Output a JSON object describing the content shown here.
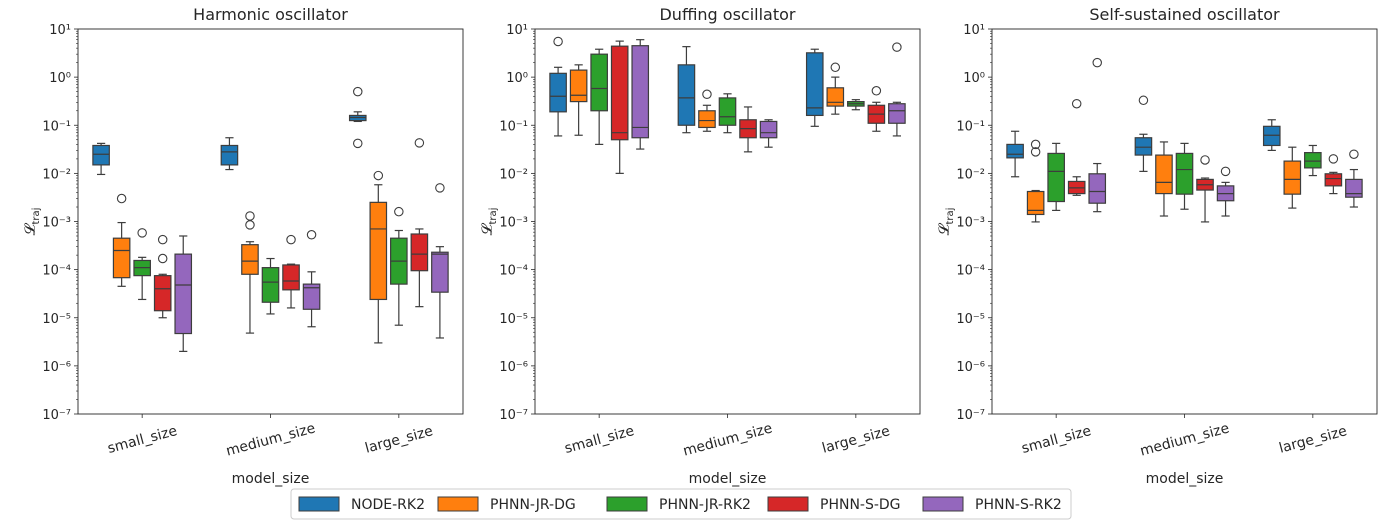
{
  "legend": {
    "placement": "bottom-center",
    "entries": [
      {
        "label": "NODE-RK2",
        "color": "#1f77b4"
      },
      {
        "label": "PHNN-JR-DG",
        "color": "#ff7f0e"
      },
      {
        "label": "PHNN-JR-RK2",
        "color": "#2ca02c"
      },
      {
        "label": "PHNN-S-DG",
        "color": "#d62728"
      },
      {
        "label": "PHNN-S-RK2",
        "color": "#9467bd"
      }
    ]
  },
  "chart_data": [
    {
      "type": "box",
      "title": "Harmonic oscillator",
      "xlabel": "model_size",
      "ylabel": "𝓛",
      "ylabel_sub": "traj",
      "yscale": "log",
      "ylim": [
        1e-07,
        10
      ],
      "yticks": [
        "10⁻⁷",
        "10⁻⁶",
        "10⁻⁵",
        "10⁻⁴",
        "10⁻³",
        "10⁻²",
        "10⁻¹",
        "10⁰",
        "10¹"
      ],
      "categories": [
        "small_size",
        "medium_size",
        "large_size"
      ],
      "series": [
        {
          "name": "NODE-RK2",
          "boxes": [
            {
              "min": 0.0095,
              "q1": 0.015,
              "median": 0.025,
              "q3": 0.038,
              "max": 0.042,
              "outliers": []
            },
            {
              "min": 0.012,
              "q1": 0.015,
              "median": 0.028,
              "q3": 0.038,
              "max": 0.055,
              "outliers": []
            },
            {
              "min": 0.12,
              "q1": 0.125,
              "median": 0.145,
              "q3": 0.16,
              "max": 0.19,
              "outliers": [
                0.5,
                0.042
              ]
            }
          ]
        },
        {
          "name": "PHNN-JR-DG",
          "boxes": [
            {
              "min": 4.5e-05,
              "q1": 6.8e-05,
              "median": 0.00025,
              "q3": 0.00045,
              "max": 0.00095,
              "outliers": [
                0.003
              ]
            },
            {
              "min": 4.8e-06,
              "q1": 8e-05,
              "median": 0.00015,
              "q3": 0.00033,
              "max": 0.00038,
              "outliers": [
                0.0013,
                0.00085
              ]
            },
            {
              "min": 3e-06,
              "q1": 2.4e-05,
              "median": 0.0007,
              "q3": 0.0025,
              "max": 0.0058,
              "outliers": [
                0.009
              ]
            }
          ]
        },
        {
          "name": "PHNN-JR-RK2",
          "boxes": [
            {
              "min": 2.4e-05,
              "q1": 7.5e-05,
              "median": 0.00011,
              "q3": 0.000155,
              "max": 0.00018,
              "outliers": [
                0.00058
              ]
            },
            {
              "min": 1.2e-05,
              "q1": 2.1e-05,
              "median": 5.5e-05,
              "q3": 0.00011,
              "max": 0.00017,
              "outliers": []
            },
            {
              "min": 7e-06,
              "q1": 5e-05,
              "median": 0.00015,
              "q3": 0.00045,
              "max": 0.00065,
              "outliers": [
                0.0016
              ]
            }
          ]
        },
        {
          "name": "PHNN-S-DG",
          "boxes": [
            {
              "min": 1e-05,
              "q1": 1.4e-05,
              "median": 4e-05,
              "q3": 7.5e-05,
              "max": 8e-05,
              "outliers": [
                0.00042,
                0.00017
              ]
            },
            {
              "min": 1.6e-05,
              "q1": 3.8e-05,
              "median": 5.8e-05,
              "q3": 0.000125,
              "max": 0.00013,
              "outliers": [
                0.00042
              ]
            },
            {
              "min": 1.7e-05,
              "q1": 9.5e-05,
              "median": 0.00021,
              "q3": 0.00055,
              "max": 0.0007,
              "outliers": [
                0.043
              ]
            }
          ]
        },
        {
          "name": "PHNN-S-RK2",
          "boxes": [
            {
              "min": 2e-06,
              "q1": 4.7e-06,
              "median": 4.8e-05,
              "q3": 0.00021,
              "max": 0.0005,
              "outliers": []
            },
            {
              "min": 6.5e-06,
              "q1": 1.5e-05,
              "median": 4.2e-05,
              "q3": 5e-05,
              "max": 9e-05,
              "outliers": [
                0.00053
              ]
            },
            {
              "min": 3.8e-06,
              "q1": 3.4e-05,
              "median": 0.00021,
              "q3": 0.00023,
              "max": 0.0003,
              "outliers": [
                0.005
              ]
            }
          ]
        }
      ]
    },
    {
      "type": "box",
      "title": "Duffing oscillator",
      "xlabel": "model_size",
      "ylabel": "𝓛",
      "ylabel_sub": "traj",
      "yscale": "log",
      "ylim": [
        1e-07,
        10
      ],
      "yticks": [
        "10⁻⁷",
        "10⁻⁶",
        "10⁻⁵",
        "10⁻⁴",
        "10⁻³",
        "10⁻²",
        "10⁻¹",
        "10⁰",
        "10¹"
      ],
      "categories": [
        "small_size",
        "medium_size",
        "large_size"
      ],
      "series": [
        {
          "name": "NODE-RK2",
          "boxes": [
            {
              "min": 0.06,
              "q1": 0.19,
              "median": 0.4,
              "q3": 1.2,
              "max": 1.6,
              "outliers": [
                5.5
              ]
            },
            {
              "min": 0.07,
              "q1": 0.1,
              "median": 0.37,
              "q3": 1.8,
              "max": 4.3,
              "outliers": []
            },
            {
              "min": 0.095,
              "q1": 0.16,
              "median": 0.23,
              "q3": 3.2,
              "max": 3.8,
              "outliers": []
            }
          ]
        },
        {
          "name": "PHNN-JR-DG",
          "boxes": [
            {
              "min": 0.062,
              "q1": 0.31,
              "median": 0.42,
              "q3": 1.4,
              "max": 1.8,
              "outliers": []
            },
            {
              "min": 0.075,
              "q1": 0.09,
              "median": 0.125,
              "q3": 0.2,
              "max": 0.26,
              "outliers": [
                0.44
              ]
            },
            {
              "min": 0.17,
              "q1": 0.25,
              "median": 0.3,
              "q3": 0.6,
              "max": 1.0,
              "outliers": [
                1.6
              ]
            }
          ]
        },
        {
          "name": "PHNN-JR-RK2",
          "boxes": [
            {
              "min": 0.04,
              "q1": 0.2,
              "median": 0.58,
              "q3": 3.0,
              "max": 3.8,
              "outliers": []
            },
            {
              "min": 0.07,
              "q1": 0.1,
              "median": 0.15,
              "q3": 0.37,
              "max": 0.45,
              "outliers": []
            },
            {
              "min": 0.21,
              "q1": 0.25,
              "median": 0.28,
              "q3": 0.31,
              "max": 0.34,
              "outliers": []
            }
          ]
        },
        {
          "name": "PHNN-S-DG",
          "boxes": [
            {
              "min": 0.01,
              "q1": 0.05,
              "median": 0.07,
              "q3": 4.4,
              "max": 5.6,
              "outliers": []
            },
            {
              "min": 0.028,
              "q1": 0.055,
              "median": 0.085,
              "q3": 0.13,
              "max": 0.24,
              "outliers": []
            },
            {
              "min": 0.075,
              "q1": 0.11,
              "median": 0.17,
              "q3": 0.26,
              "max": 0.3,
              "outliers": [
                0.52
              ]
            }
          ]
        },
        {
          "name": "PHNN-S-RK2",
          "boxes": [
            {
              "min": 0.032,
              "q1": 0.055,
              "median": 0.09,
              "q3": 4.5,
              "max": 6.0,
              "outliers": []
            },
            {
              "min": 0.035,
              "q1": 0.055,
              "median": 0.07,
              "q3": 0.12,
              "max": 0.13,
              "outliers": []
            },
            {
              "min": 0.06,
              "q1": 0.11,
              "median": 0.2,
              "q3": 0.28,
              "max": 0.3,
              "outliers": [
                4.2
              ]
            }
          ]
        }
      ]
    },
    {
      "type": "box",
      "title": "Self-sustained oscillator",
      "xlabel": "model_size",
      "ylabel": "𝓛",
      "ylabel_sub": "traj",
      "yscale": "log",
      "ylim": [
        1e-07,
        10
      ],
      "yticks": [
        "10⁻⁷",
        "10⁻⁶",
        "10⁻⁵",
        "10⁻⁴",
        "10⁻³",
        "10⁻²",
        "10⁻¹",
        "10⁰",
        "10¹"
      ],
      "categories": [
        "small_size",
        "medium_size",
        "large_size"
      ],
      "series": [
        {
          "name": "NODE-RK2",
          "boxes": [
            {
              "min": 0.0085,
              "q1": 0.021,
              "median": 0.025,
              "q3": 0.04,
              "max": 0.075,
              "outliers": []
            },
            {
              "min": 0.011,
              "q1": 0.024,
              "median": 0.035,
              "q3": 0.055,
              "max": 0.065,
              "outliers": [
                0.33
              ]
            },
            {
              "min": 0.03,
              "q1": 0.038,
              "median": 0.062,
              "q3": 0.095,
              "max": 0.13,
              "outliers": []
            }
          ]
        },
        {
          "name": "PHNN-JR-DG",
          "boxes": [
            {
              "min": 0.00098,
              "q1": 0.0014,
              "median": 0.0017,
              "q3": 0.0042,
              "max": 0.0044,
              "outliers": [
                0.04,
                0.028
              ]
            },
            {
              "min": 0.0013,
              "q1": 0.0038,
              "median": 0.0065,
              "q3": 0.024,
              "max": 0.045,
              "outliers": []
            },
            {
              "min": 0.0019,
              "q1": 0.0037,
              "median": 0.0075,
              "q3": 0.018,
              "max": 0.035,
              "outliers": []
            }
          ]
        },
        {
          "name": "PHNN-JR-RK2",
          "boxes": [
            {
              "min": 0.0017,
              "q1": 0.0026,
              "median": 0.011,
              "q3": 0.026,
              "max": 0.042,
              "outliers": []
            },
            {
              "min": 0.0018,
              "q1": 0.0037,
              "median": 0.012,
              "q3": 0.026,
              "max": 0.042,
              "outliers": []
            },
            {
              "min": 0.009,
              "q1": 0.013,
              "median": 0.018,
              "q3": 0.027,
              "max": 0.038,
              "outliers": []
            }
          ]
        },
        {
          "name": "PHNN-S-DG",
          "boxes": [
            {
              "min": 0.0035,
              "q1": 0.0038,
              "median": 0.005,
              "q3": 0.0068,
              "max": 0.0085,
              "outliers": [
                0.28
              ]
            },
            {
              "min": 0.00098,
              "q1": 0.0045,
              "median": 0.0058,
              "q3": 0.0075,
              "max": 0.008,
              "outliers": [
                0.019
              ]
            },
            {
              "min": 0.0038,
              "q1": 0.0055,
              "median": 0.0078,
              "q3": 0.0098,
              "max": 0.0105,
              "outliers": [
                0.02
              ]
            }
          ]
        },
        {
          "name": "PHNN-S-RK2",
          "boxes": [
            {
              "min": 0.0016,
              "q1": 0.0024,
              "median": 0.0042,
              "q3": 0.0098,
              "max": 0.016,
              "outliers": [
                2.0
              ]
            },
            {
              "min": 0.0013,
              "q1": 0.0027,
              "median": 0.0038,
              "q3": 0.0055,
              "max": 0.0065,
              "outliers": [
                0.011
              ]
            },
            {
              "min": 0.002,
              "q1": 0.0032,
              "median": 0.0038,
              "q3": 0.0075,
              "max": 0.012,
              "outliers": [
                0.025
              ]
            }
          ]
        }
      ]
    }
  ]
}
